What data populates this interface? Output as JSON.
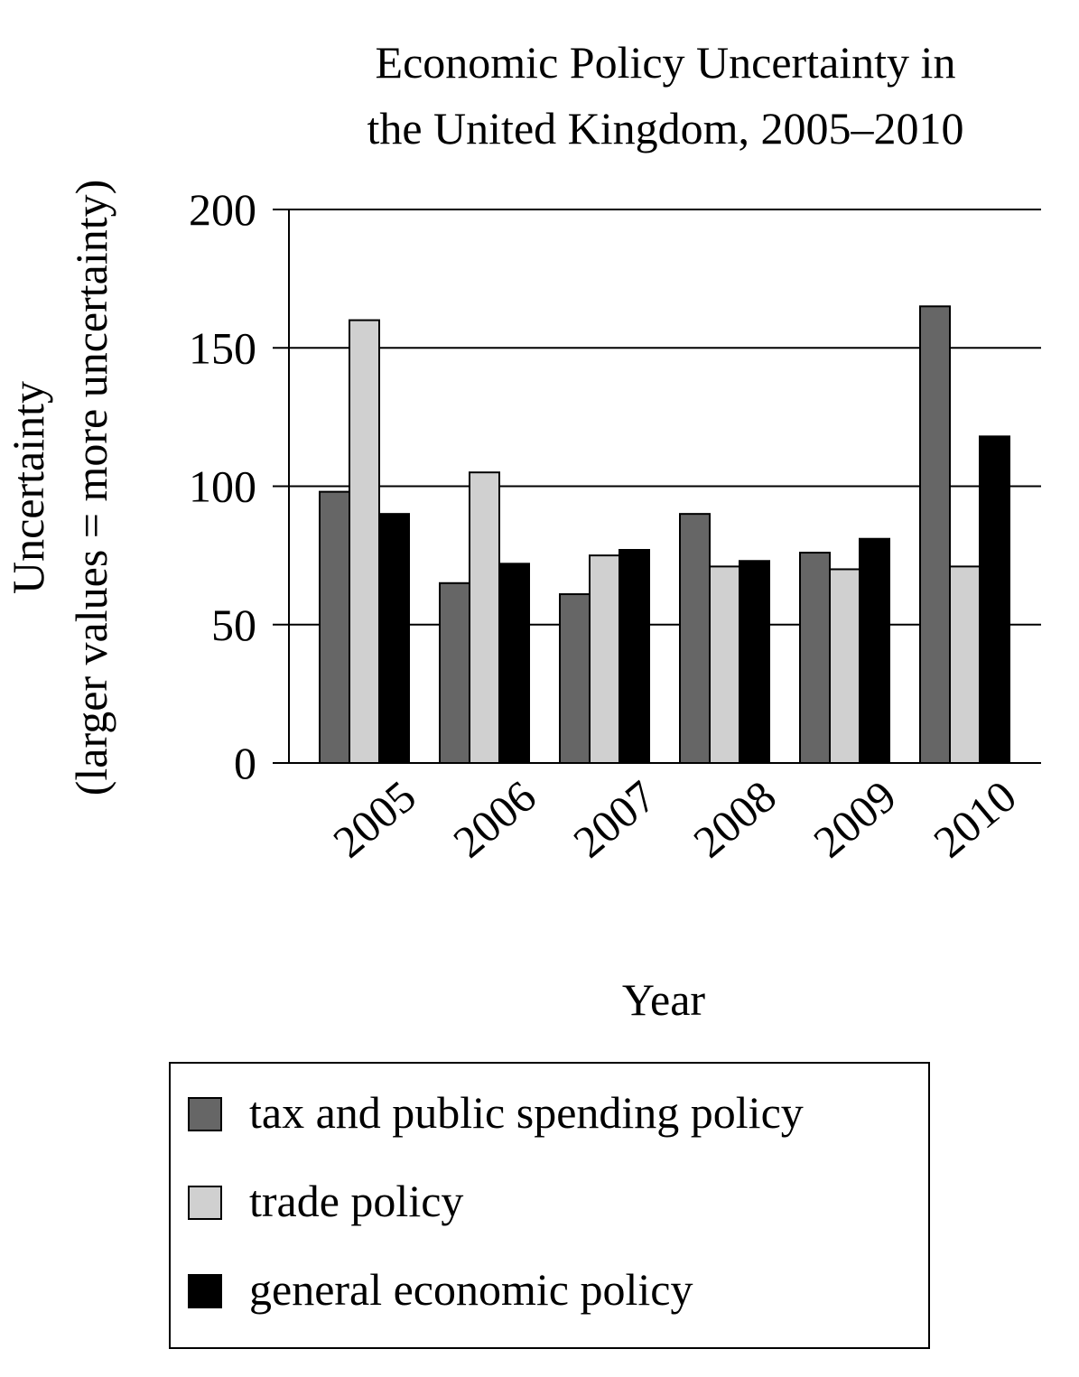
{
  "chart_data": {
    "type": "bar",
    "title_lines": [
      "Economic Policy Uncertainty in",
      "the United Kingdom, 2005–2010"
    ],
    "xlabel": "Year",
    "ylabel_lines": [
      "Uncertainty",
      "(larger values = more uncertainty)"
    ],
    "categories": [
      "2005",
      "2006",
      "2007",
      "2008",
      "2009",
      "2010"
    ],
    "ylim": [
      0,
      200
    ],
    "yticks": [
      0,
      50,
      100,
      150,
      200
    ],
    "grid": true,
    "legend_position": "bottom",
    "series": [
      {
        "name": "tax and public spending policy",
        "color": "#666666",
        "values": [
          98,
          65,
          61,
          90,
          76,
          165
        ]
      },
      {
        "name": "trade policy",
        "color": "#d0d0d0",
        "values": [
          160,
          105,
          75,
          71,
          70,
          71
        ]
      },
      {
        "name": "general economic policy",
        "color": "#000000",
        "values": [
          90,
          72,
          77,
          73,
          81,
          118
        ]
      }
    ]
  }
}
